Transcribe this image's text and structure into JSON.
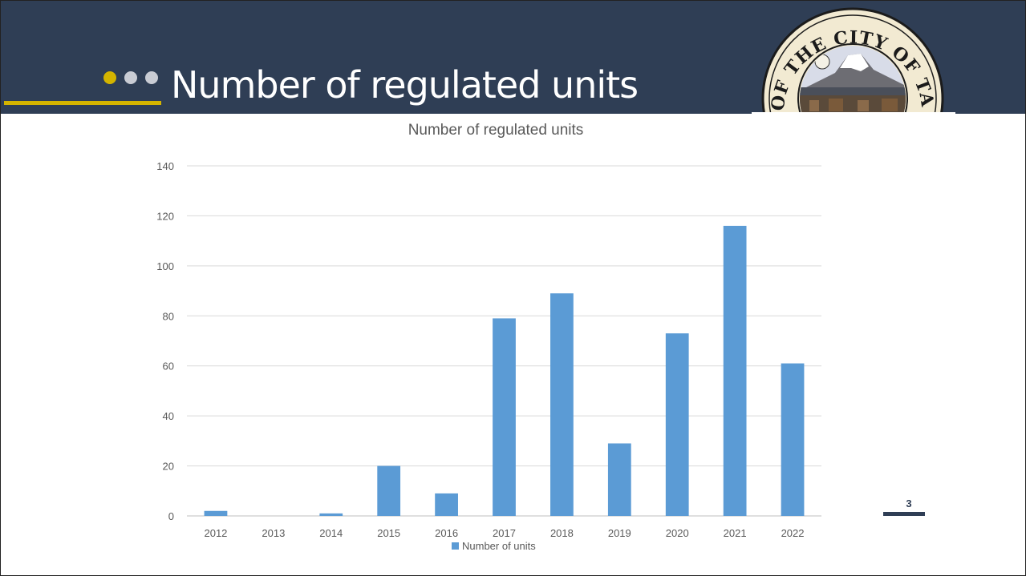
{
  "slide": {
    "title": "Number of regulated units",
    "page_number": "3",
    "seal_text": "SEAL OF THE CITY OF TACOMA",
    "colors": {
      "header_bg": "#2f3e55",
      "accent_yellow": "#d4b400",
      "dot_gray": "#c9ccd4",
      "bar": "#5b9bd5"
    }
  },
  "chart_data": {
    "type": "bar",
    "title": "Number of regulated units",
    "categories": [
      "2012",
      "2013",
      "2014",
      "2015",
      "2016",
      "2017",
      "2018",
      "2019",
      "2020",
      "2021",
      "2022"
    ],
    "series": [
      {
        "name": "Number of units",
        "values": [
          2,
          0,
          1,
          20,
          9,
          79,
          89,
          29,
          73,
          116,
          61
        ]
      }
    ],
    "ylim": [
      0,
      140
    ],
    "yticks": [
      0,
      20,
      40,
      60,
      80,
      100,
      120,
      140
    ],
    "grid": true,
    "legend": "bottom"
  }
}
